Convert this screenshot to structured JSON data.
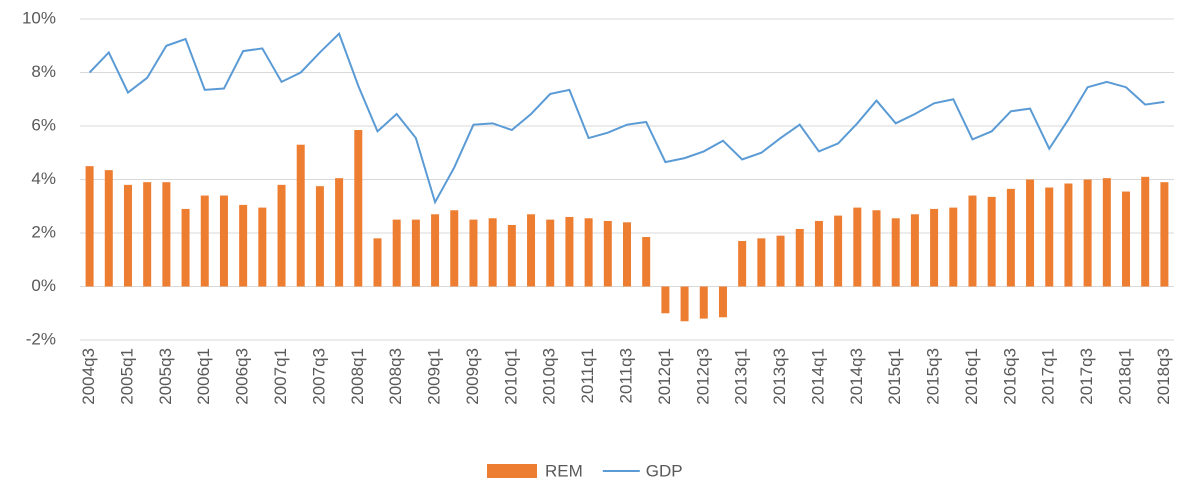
{
  "chart_data": {
    "type": "bar_line",
    "categories": [
      "2004q3",
      null,
      "2005q1",
      null,
      "2005q3",
      null,
      "2006q1",
      null,
      "2006q3",
      null,
      "2007q1",
      null,
      "2007q3",
      null,
      "2008q1",
      null,
      "2008q3",
      null,
      "2009q1",
      null,
      "2009q3",
      null,
      "2010q1",
      null,
      "2010q3",
      null,
      "2011q1",
      null,
      "2011q3",
      null,
      "2012q1",
      null,
      "2012q3",
      null,
      "2013q1",
      null,
      "2013q3",
      null,
      "2014q1",
      null,
      "2014q3",
      null,
      "2015q1",
      null,
      "2015q3",
      null,
      "2016q1",
      null,
      "2016q3",
      null,
      "2017q1",
      null,
      "2017q3",
      null,
      "2018q1",
      null,
      "2018q3"
    ],
    "series": [
      {
        "name": "REM",
        "type": "bar",
        "color": "#ed7d31",
        "values": [
          4.5,
          4.35,
          3.8,
          3.9,
          3.9,
          2.9,
          3.4,
          3.4,
          3.05,
          2.95,
          3.8,
          5.3,
          3.75,
          4.05,
          5.85,
          1.8,
          2.5,
          2.5,
          2.7,
          2.85,
          2.5,
          2.55,
          2.3,
          2.7,
          2.5,
          2.6,
          2.55,
          2.45,
          2.4,
          1.85,
          -1.0,
          -1.3,
          -1.2,
          -1.15,
          1.7,
          1.8,
          1.9,
          2.15,
          2.45,
          2.65,
          2.95,
          2.85,
          2.55,
          2.7,
          2.9,
          2.95,
          3.4,
          3.35,
          3.65,
          4.0,
          3.7,
          3.85,
          4.0,
          4.05,
          3.55,
          4.1,
          3.9
        ]
      },
      {
        "name": "GDP",
        "type": "line",
        "color": "#5b9bd5",
        "values": [
          8.0,
          8.75,
          7.25,
          7.8,
          9.0,
          9.25,
          7.35,
          7.4,
          8.8,
          8.9,
          7.65,
          8.0,
          8.75,
          9.45,
          7.5,
          5.8,
          6.45,
          5.55,
          3.15,
          4.45,
          6.05,
          6.1,
          5.85,
          6.45,
          7.2,
          7.35,
          5.55,
          5.75,
          6.05,
          6.15,
          4.65,
          4.8,
          5.05,
          5.45,
          4.75,
          5.0,
          5.55,
          6.05,
          5.05,
          5.35,
          6.1,
          6.95,
          6.1,
          6.45,
          6.85,
          7.0,
          5.5,
          5.8,
          6.55,
          6.65,
          5.15,
          6.25,
          7.45,
          7.65,
          7.45,
          6.8,
          6.9
        ]
      }
    ],
    "ylim": [
      -2,
      10
    ],
    "yticks": [
      {
        "value": -2,
        "label": "-2%"
      },
      {
        "value": 0,
        "label": "0%"
      },
      {
        "value": 2,
        "label": "2%"
      },
      {
        "value": 4,
        "label": "4%"
      },
      {
        "value": 6,
        "label": "6%"
      },
      {
        "value": 8,
        "label": "8%"
      },
      {
        "value": 10,
        "label": "10%"
      }
    ],
    "grid": true,
    "legend": "bottom"
  }
}
